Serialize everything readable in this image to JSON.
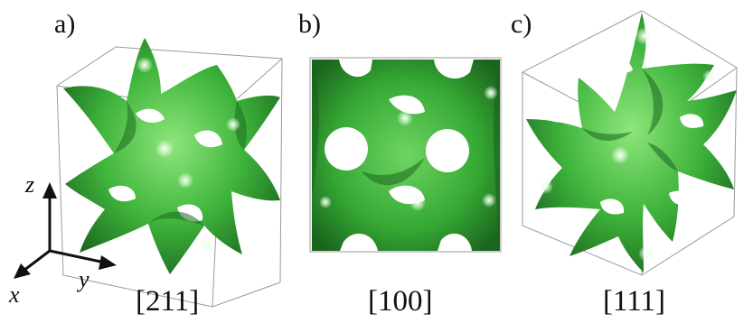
{
  "panels": [
    {
      "label": "a)",
      "direction": "[211]"
    },
    {
      "label": "b)",
      "direction": "[100]"
    },
    {
      "label": "c)",
      "direction": "[111]"
    }
  ],
  "axes": {
    "x": "x",
    "y": "y",
    "z": "z"
  },
  "colors": {
    "surface_light": "#7fe06f",
    "surface_mid": "#3cb33a",
    "surface_dark": "#1f6f22",
    "cell_edge": "#9a9a9a",
    "background": "#ffffff"
  }
}
